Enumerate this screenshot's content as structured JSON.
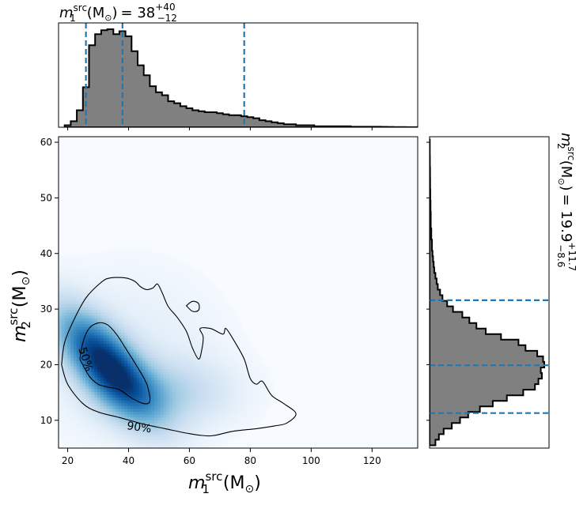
{
  "chart_data": [
    {
      "type": "histogram",
      "panel": "top-marginal",
      "title_lhs": "m",
      "title_sub": "1",
      "title_sup": "src",
      "title_unit": "(M",
      "title_unit_sub": "⊙",
      "title_unit_close": ")",
      "title_eq": "= 38",
      "title_sup_err": "+40",
      "title_sub_err": "−12",
      "xlim": [
        17,
        135
      ],
      "bin_edges": [
        19,
        21,
        23,
        25,
        27,
        29,
        31,
        33,
        35,
        37,
        39,
        41,
        43,
        45,
        47,
        49,
        51,
        53,
        55,
        57,
        59,
        61,
        63,
        65,
        67,
        69,
        71,
        73,
        75,
        77,
        79,
        81,
        83,
        85,
        87,
        89,
        91,
        93,
        95,
        97,
        99,
        101,
        103,
        105,
        107,
        109,
        111,
        113,
        115,
        117,
        119,
        121,
        123,
        125,
        127,
        129,
        131,
        133,
        135
      ],
      "density": [
        0.02,
        0.06,
        0.17,
        0.4,
        0.82,
        0.93,
        0.97,
        0.98,
        0.93,
        0.96,
        0.91,
        0.76,
        0.62,
        0.52,
        0.41,
        0.35,
        0.32,
        0.26,
        0.24,
        0.21,
        0.19,
        0.17,
        0.16,
        0.15,
        0.15,
        0.14,
        0.13,
        0.12,
        0.12,
        0.11,
        0.1,
        0.09,
        0.07,
        0.06,
        0.05,
        0.04,
        0.03,
        0.03,
        0.02,
        0.02,
        0.02,
        0.01,
        0.01,
        0.01,
        0.01,
        0.01,
        0.01,
        0.005,
        0.005,
        0.005,
        0.005,
        0.005,
        0.004,
        0.003,
        0.002,
        0.002,
        0.001,
        0.001
      ],
      "quantile_lines": [
        26,
        38,
        78
      ],
      "line_color": "#1f77b4",
      "fill_color": "#808080"
    },
    {
      "type": "heatmap",
      "panel": "joint",
      "xlabel_base": "m",
      "xlabel_sub": "1",
      "xlabel_sup": "src",
      "xlabel_unit": "(M",
      "xlabel_unit_sub": "⊙",
      "xlabel_unit_close": ")",
      "ylabel_base": "m",
      "ylabel_sub": "2",
      "ylabel_sup": "src",
      "ylabel_unit": "(M",
      "ylabel_unit_sub": "⊙",
      "ylabel_unit_close": ")",
      "xlim": [
        17,
        135
      ],
      "ylim": [
        5,
        61
      ],
      "xticks": [
        20,
        40,
        60,
        80,
        100,
        120
      ],
      "yticks": [
        10,
        20,
        30,
        40,
        50,
        60
      ],
      "peak": {
        "x": 33,
        "y": 20
      },
      "colormap": "Blues",
      "contours": [
        {
          "label": "50%",
          "label_at": [
            26,
            21
          ],
          "points": [
            [
              24,
              21
            ],
            [
              25,
              24
            ],
            [
              27,
              26.5
            ],
            [
              30,
              27.5
            ],
            [
              33,
              27.2
            ],
            [
              36,
              25.5
            ],
            [
              39,
              23
            ],
            [
              43,
              19.5
            ],
            [
              46,
              16.5
            ],
            [
              47,
              13.5
            ],
            [
              45,
              13
            ],
            [
              41,
              14
            ],
            [
              37,
              15.5
            ],
            [
              33,
              16
            ],
            [
              30,
              16.5
            ],
            [
              27,
              18
            ],
            [
              24,
              21
            ]
          ]
        },
        {
          "label": "90%",
          "label_at": [
            43.5,
            8.8
          ],
          "points": [
            [
              18,
              20
            ],
            [
              19,
              24
            ],
            [
              22,
              28
            ],
            [
              26,
              32
            ],
            [
              31,
              34.8
            ],
            [
              34,
              35.6
            ],
            [
              39,
              35.6
            ],
            [
              42,
              35
            ],
            [
              44,
              34
            ],
            [
              46,
              33.5
            ],
            [
              48,
              33.8
            ],
            [
              49.5,
              34.5
            ],
            [
              51,
              33
            ],
            [
              53,
              30.5
            ],
            [
              56,
              28.5
            ],
            [
              59,
              26
            ],
            [
              61,
              23
            ],
            [
              63,
              21
            ],
            [
              64,
              22.5
            ],
            [
              64.5,
              25
            ],
            [
              63.5,
              26.5
            ],
            [
              67,
              26.5
            ],
            [
              71,
              25.5
            ],
            [
              72,
              26.5
            ],
            [
              75,
              24
            ],
            [
              78,
              21
            ],
            [
              80,
              17.5
            ],
            [
              82,
              16.5
            ],
            [
              84,
              17
            ],
            [
              87,
              14.5
            ],
            [
              91,
              13
            ],
            [
              95,
              11.2
            ],
            [
              92,
              9.5
            ],
            [
              88,
              9
            ],
            [
              82,
              8.5
            ],
            [
              74,
              8
            ],
            [
              67,
              7.2
            ],
            [
              60,
              7.6
            ],
            [
              52,
              8.5
            ],
            [
              45,
              9.3
            ],
            [
              37,
              10.5
            ],
            [
              30,
              11.5
            ],
            [
              25,
              13
            ],
            [
              20,
              16.5
            ],
            [
              18,
              20
            ]
          ]
        },
        {
          "label": "",
          "points": [
            [
              59,
              30.6
            ],
            [
              61,
              31.4
            ],
            [
              63,
              31
            ],
            [
              63,
              29.8
            ],
            [
              61,
              29.6
            ],
            [
              59,
              30.6
            ]
          ]
        }
      ]
    },
    {
      "type": "histogram",
      "panel": "right-marginal",
      "orientation": "horizontal",
      "title_lhs": "m",
      "title_sub": "2",
      "title_sup": "src",
      "title_unit": "(M",
      "title_unit_sub": "⊙",
      "title_unit_close": ")",
      "title_eq": "= 19.9",
      "title_sup_err": "+11.7",
      "title_sub_err": "−8.6",
      "ylim": [
        5,
        61
      ],
      "bin_edges": [
        5.5,
        6.5,
        7.5,
        8.5,
        9.5,
        10.5,
        11.5,
        12.5,
        13.5,
        14.5,
        15.5,
        16.5,
        17.5,
        18.5,
        19.5,
        20.5,
        21.5,
        22.5,
        23.5,
        24.5,
        25.5,
        26.5,
        27.5,
        28.5,
        29.5,
        30.5,
        31.5,
        32.5,
        33.5,
        34.5,
        35.5,
        36.5,
        37.5,
        38.5,
        39.5,
        40.5,
        41.5,
        42.5,
        43.5,
        44.5,
        45.5,
        46.5,
        47.5,
        48.5,
        49.5,
        50.5,
        51.5,
        52.5,
        53.5,
        54.5,
        55.5,
        56.5,
        57.5,
        58.5,
        59.5,
        60.5
      ],
      "density": [
        0.05,
        0.08,
        0.12,
        0.19,
        0.26,
        0.33,
        0.43,
        0.54,
        0.66,
        0.8,
        0.9,
        0.93,
        0.96,
        0.95,
        0.98,
        0.97,
        0.92,
        0.82,
        0.76,
        0.61,
        0.48,
        0.4,
        0.34,
        0.28,
        0.2,
        0.15,
        0.11,
        0.09,
        0.07,
        0.06,
        0.05,
        0.04,
        0.035,
        0.03,
        0.025,
        0.02,
        0.02,
        0.015,
        0.015,
        0.01,
        0.01,
        0.01,
        0.008,
        0.008,
        0.006,
        0.006,
        0.005,
        0.005,
        0.004,
        0.004,
        0.003,
        0.003,
        0.002,
        0.002,
        0.002
      ],
      "quantile_lines": [
        11.3,
        19.9,
        31.6
      ],
      "line_color": "#1f77b4",
      "fill_color": "#808080"
    }
  ]
}
